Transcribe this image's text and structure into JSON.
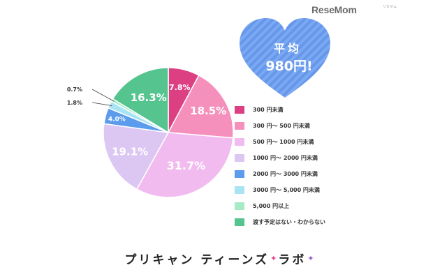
{
  "brand": {
    "name": "ReseMom",
    "sub": "リセマム"
  },
  "average": {
    "label": "平均",
    "value": "980円!"
  },
  "footer": {
    "title": "プリキャン ティーンズ",
    "tail": "ラボ"
  },
  "colors": {
    "heart": "#7aa9f4",
    "heart_stripe": "#6897ea",
    "footer_sparkle_1": "#ea3c8c",
    "footer_sparkle_2": "#9b59d0"
  },
  "chart_data": {
    "type": "pie",
    "start": "12 o'clock",
    "direction": "clockwise",
    "slices": [
      {
        "label": "300 円未満",
        "value": 7.8,
        "display": "7.8%",
        "color": "#dd3f83"
      },
      {
        "label": "300 円〜 500 円未満",
        "value": 18.5,
        "display": "18.5%",
        "color": "#f590bd"
      },
      {
        "label": "500 円〜 1000 円未満",
        "value": 31.7,
        "display": "31.7%",
        "color": "#f2bbef"
      },
      {
        "label": "1000 円〜 2000 円未満",
        "value": 19.1,
        "display": "19.1%",
        "color": "#dcc7f3"
      },
      {
        "label": "2000 円〜 3000 円未満",
        "value": 4.0,
        "display": "4.0%",
        "color": "#5b9ced"
      },
      {
        "label": "3000 円〜 5,000 円未満",
        "value": 1.8,
        "display": "1.8%",
        "color": "#a8e4f4"
      },
      {
        "label": "5,000 円以上",
        "value": 0.7,
        "display": "0.7%",
        "color": "#a6eac6"
      },
      {
        "label": "渡す予定はない・わからない",
        "value": 16.3,
        "display": "16.3%",
        "color": "#55c48f"
      }
    ]
  }
}
